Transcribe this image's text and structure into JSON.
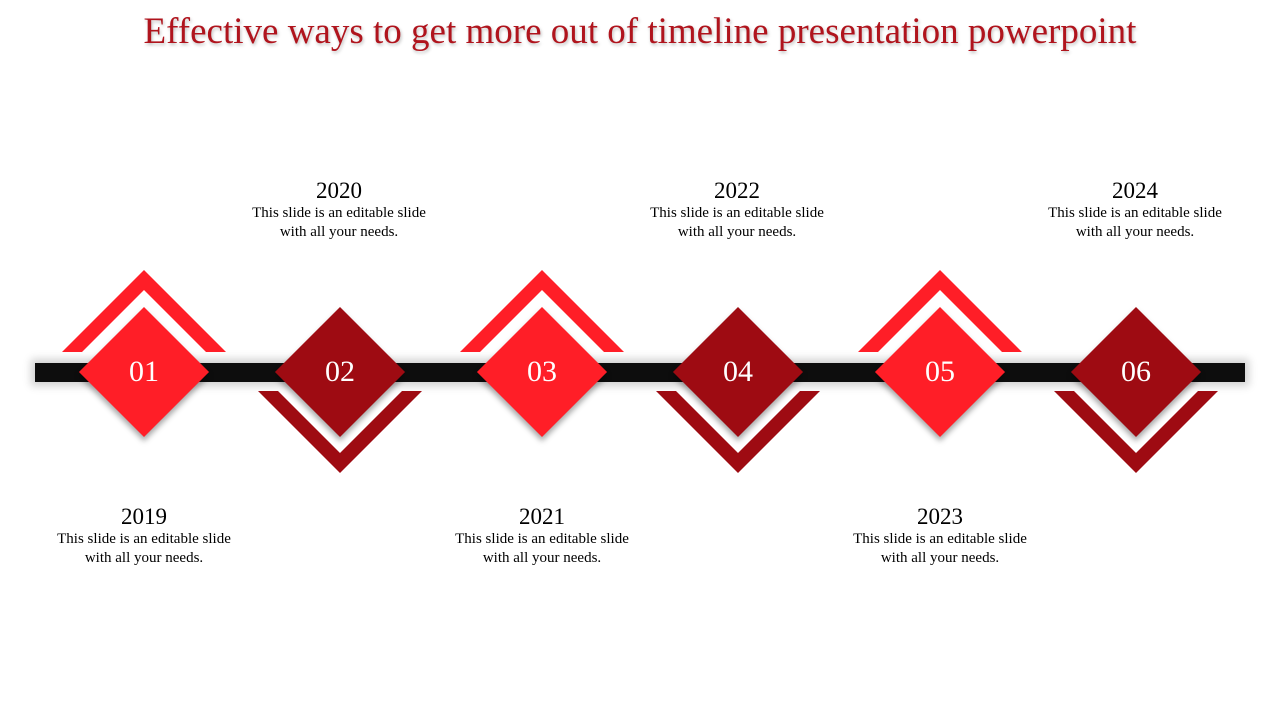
{
  "title": "Effective ways to get more out of timeline presentation powerpoint",
  "colors": {
    "title": "#b0141d",
    "bright_red": "#ff1e27",
    "dark_red": "#9e0b12",
    "bar": "#0d0d0d"
  },
  "steps": [
    {
      "number": "01",
      "year": "2019",
      "line1": "This slide is an editable slide",
      "line2": "with all your needs."
    },
    {
      "number": "02",
      "year": "2020",
      "line1": "This slide is an editable slide",
      "line2": "with all your needs."
    },
    {
      "number": "03",
      "year": "2021",
      "line1": "This slide is an editable slide",
      "line2": "with all your needs."
    },
    {
      "number": "04",
      "year": "2022",
      "line1": "This slide is an editable slide",
      "line2": "with all your needs."
    },
    {
      "number": "05",
      "year": "2023",
      "line1": "This slide is an editable slide",
      "line2": "with all your needs."
    },
    {
      "number": "06",
      "year": "2024",
      "line1": "This slide is an editable slide",
      "line2": "with all your needs."
    }
  ]
}
